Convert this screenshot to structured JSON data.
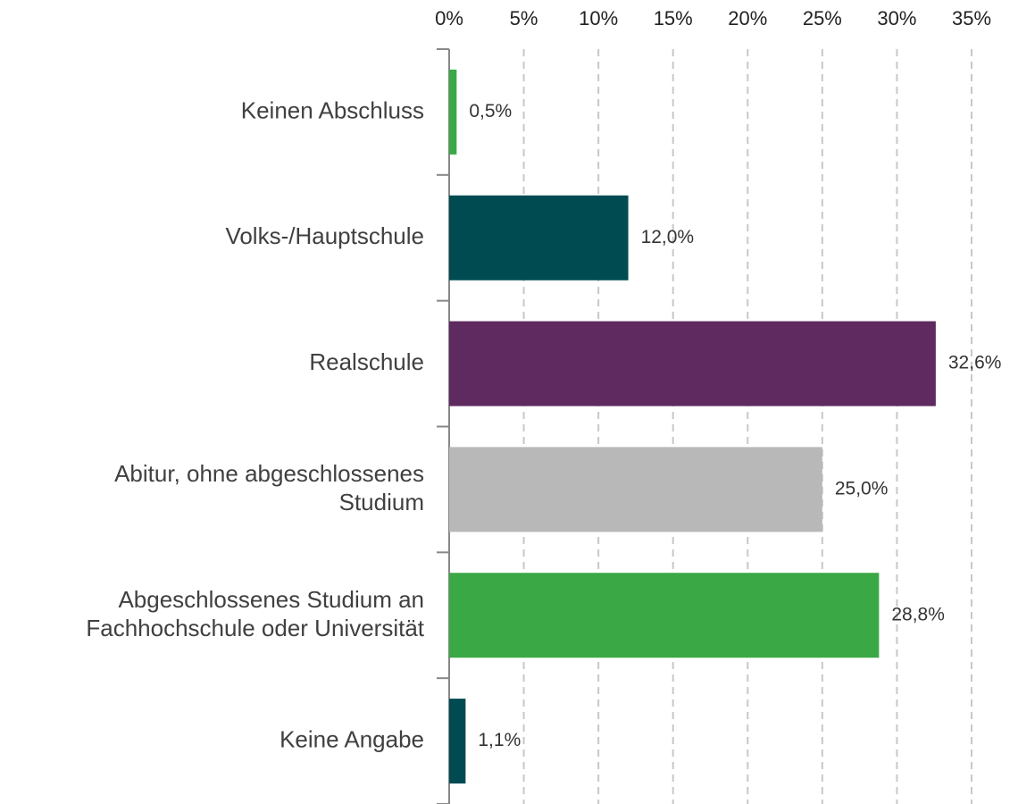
{
  "chart_data": {
    "type": "barh",
    "categories": [
      "Keinen Abschluss",
      "Volks-/Hauptschule",
      "Realschule",
      "Abitur, ohne abgeschlossenes\nStudium",
      "Abgeschlossenes Studium an\nFachhochschule oder Universität",
      "Keine Angabe"
    ],
    "values": [
      0.5,
      12.0,
      32.6,
      25.0,
      28.8,
      1.1
    ],
    "value_labels": [
      "0,5%",
      "12,0%",
      "32,6%",
      "25,0%",
      "28,8%",
      "1,1%"
    ],
    "colors": [
      "#3aa845",
      "#004b52",
      "#5e2a5f",
      "#b8b8b8",
      "#3aa845",
      "#004b52"
    ],
    "xlim": [
      0,
      35
    ],
    "xticks": [
      {
        "value": 0,
        "label": "0%"
      },
      {
        "value": 5,
        "label": "5%"
      },
      {
        "value": 10,
        "label": "10%"
      },
      {
        "value": 15,
        "label": "15%"
      },
      {
        "value": 20,
        "label": "20%"
      },
      {
        "value": 25,
        "label": "25%"
      },
      {
        "value": 30,
        "label": "30%"
      },
      {
        "value": 35,
        "label": "35%"
      }
    ],
    "grid": true
  }
}
